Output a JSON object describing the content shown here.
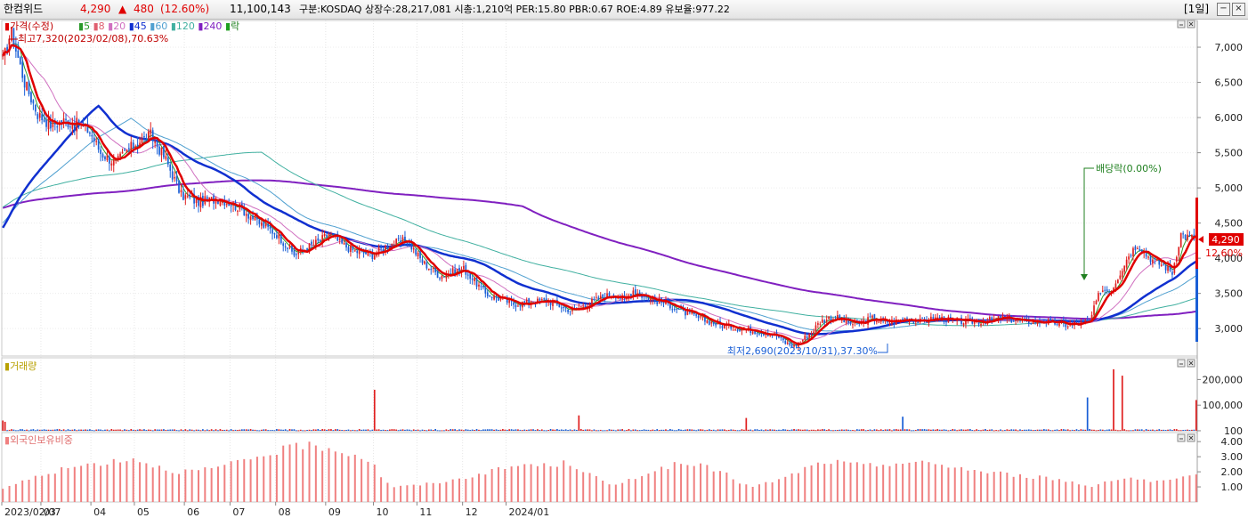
{
  "header": {
    "stock_name": "한컴위드",
    "price": "4,290",
    "change_arrow": "▲",
    "change": "480",
    "change_pct": "(12.60%)",
    "volume": "11,100,143",
    "info": "구분:KOSDAQ 상장수:28,217,081 시총:1,210억 PER:15.80 PBR:0.67 ROE:4.89 유보율:977.22",
    "period": "[1일]",
    "btn_minimize": "−",
    "btn_close": "×"
  },
  "colors": {
    "up": "#e02020",
    "down": "#1a5fd6",
    "price_line": "#e00000",
    "ma5": "#2a9a2a",
    "ma8": "#e06070",
    "ma20": "#d070c0",
    "ma45": "#1030d0",
    "ma60": "#50a0d0",
    "ma120": "#40b0a0",
    "ma240": "#8020c0",
    "foreign": "#f08080"
  },
  "legend": {
    "price": {
      "marker": "▮",
      "label": "가격(수정)"
    },
    "ma": [
      {
        "marker": "▮",
        "label": "5",
        "color_key": "ma5"
      },
      {
        "marker": "▮",
        "label": "8",
        "color_key": "ma8"
      },
      {
        "marker": "▮",
        "label": "20",
        "color_key": "ma20"
      },
      {
        "marker": "▮",
        "label": "45",
        "color_key": "ma45"
      },
      {
        "marker": "▮",
        "label": "60",
        "color_key": "ma60"
      },
      {
        "marker": "▮",
        "label": "120",
        "color_key": "ma120"
      },
      {
        "marker": "▮",
        "label": "240",
        "color_key": "ma240"
      }
    ],
    "ex": {
      "marker": "▮",
      "label": "락"
    },
    "volume": {
      "marker": "▮",
      "label": "거래량"
    },
    "foreign": {
      "marker": "▮",
      "label": "외국인보유비중"
    }
  },
  "annotations": {
    "high": "최고7,320(2023/02/08),70.63%",
    "low": "최저2,690(2023/10/31),37.30%",
    "dividend": "배당락(0.00%)",
    "current_price": "4,290",
    "current_pct": "12.60%"
  },
  "chart_data": [
    {
      "type": "candlestick",
      "title": "가격(수정)",
      "y_ticks": [
        "7,000",
        "6,500",
        "6,000",
        "5,500",
        "5,000",
        "4,500",
        "4,000",
        "3,500",
        "3,000"
      ],
      "y_values": [
        7000,
        6500,
        6000,
        5500,
        5000,
        4500,
        4000,
        3500,
        3000
      ],
      "ylim": [
        2610,
        7380
      ],
      "x_tick_labels": [
        "2023/02/07",
        "03",
        "04",
        "05",
        "06",
        "07",
        "08",
        "09",
        "10",
        "11",
        "12",
        "2024/01"
      ],
      "series_close_keypoints": {
        "x": [
          0,
          4,
          10,
          16,
          22,
          28,
          35,
          40,
          45,
          52,
          56,
          62,
          68,
          75,
          82,
          90,
          100,
          110,
          118,
          126,
          134,
          140,
          146,
          150,
          156,
          162,
          170,
          178,
          186,
          193,
          201,
          212,
          222,
          235,
          250,
          262,
          272,
          281,
          286,
          290,
          295,
          300,
          306,
          312,
          320,
          330,
          340,
          350,
          356,
          360,
          364,
          368,
          372,
          376,
          380,
          384,
          388,
          392,
          396,
          400,
          404,
          410,
          416,
          422,
          430,
          440,
          450,
          460,
          470,
          480,
          490,
          500,
          505,
          510,
          514,
          518,
          522,
          526,
          530,
          534,
          538,
          542,
          546
        ],
        "close": [
          6800,
          7200,
          6500,
          6050,
          5900,
          5950,
          5900,
          5800,
          5500,
          5350,
          5500,
          5650,
          5750,
          5400,
          4900,
          4800,
          4850,
          4700,
          4500,
          4350,
          4050,
          4150,
          4250,
          4350,
          4200,
          4100,
          4050,
          4200,
          4250,
          3950,
          3750,
          3850,
          3500,
          3350,
          3400,
          3250,
          3400,
          3500,
          3400,
          3550,
          3450,
          3400,
          3350,
          3250,
          3150,
          3050,
          3000,
          2950,
          2900,
          2800,
          2750,
          2850,
          2950,
          3100,
          3150,
          3150,
          3100,
          3050,
          3100,
          3150,
          3100,
          3100,
          3150,
          3100,
          3150,
          3100,
          3100,
          3150,
          3100,
          3100,
          3050,
          3100,
          3550,
          3550,
          3800,
          4050,
          4200,
          4050,
          3950,
          3900,
          3800,
          4350,
          4290
        ]
      },
      "last_close": 4290
    },
    {
      "type": "bar",
      "title": "거래량",
      "y_ticks": [
        "200,000",
        "100,000",
        "100"
      ],
      "y_values": [
        200000,
        100000,
        100
      ],
      "ylim": [
        0,
        250000
      ],
      "spike_indices": [
        0,
        1,
        171,
        265,
        342,
        414,
        499,
        511,
        515,
        549
      ],
      "spike_values": [
        40000,
        35000,
        160000,
        60000,
        50000,
        55000,
        130000,
        240000,
        215000,
        120000
      ]
    },
    {
      "type": "bar",
      "title": "외국인보유비중",
      "y_ticks": [
        "4.00",
        "3.00",
        "2.00",
        "1.00"
      ],
      "y_values": [
        4,
        3,
        2,
        1
      ],
      "ylim": [
        0,
        4.6
      ],
      "keypoints_x": [
        0,
        10,
        20,
        35,
        50,
        60,
        70,
        80,
        90,
        100,
        110,
        120,
        130,
        140,
        150,
        160,
        165,
        170,
        175,
        180,
        190,
        200,
        210,
        220,
        230,
        240,
        250,
        260,
        270,
        280,
        290,
        300,
        310,
        320,
        330,
        340,
        345,
        350,
        360,
        370,
        380,
        390,
        400,
        410,
        420,
        430,
        440,
        450,
        460,
        470,
        480,
        490,
        500,
        510,
        520,
        530,
        540,
        549
      ],
      "keypoints_value": [
        0.9,
        1.4,
        1.9,
        2.4,
        2.7,
        2.9,
        2.4,
        2.0,
        2.1,
        2.3,
        2.7,
        3.1,
        3.5,
        3.8,
        3.6,
        3.2,
        3.0,
        2.6,
        1.5,
        1.0,
        1.1,
        1.3,
        1.5,
        1.9,
        2.2,
        2.5,
        2.4,
        2.6,
        1.9,
        1.0,
        1.6,
        2.1,
        2.5,
        2.4,
        2.1,
        1.2,
        1.0,
        1.2,
        1.6,
        2.3,
        2.7,
        2.5,
        2.4,
        2.6,
        2.6,
        2.5,
        2.3,
        2.0,
        1.9,
        1.7,
        1.6,
        1.4,
        1.0,
        1.5,
        1.6,
        1.3,
        1.5,
        1.7
      ]
    }
  ]
}
